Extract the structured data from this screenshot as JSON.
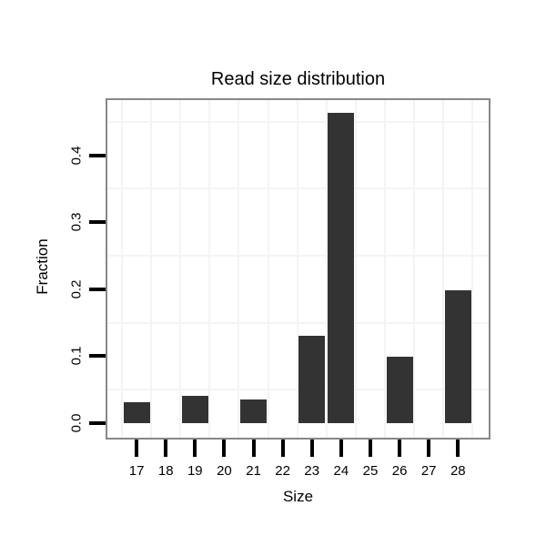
{
  "chart_data": {
    "type": "bar",
    "title": "Read size distribution",
    "xlabel": "Size",
    "ylabel": "Fraction",
    "categories": [
      "17",
      "18",
      "19",
      "20",
      "21",
      "22",
      "23",
      "24",
      "25",
      "26",
      "27",
      "28"
    ],
    "values": [
      0.031,
      0,
      0.041,
      0,
      0.035,
      0,
      0.131,
      0.463,
      0,
      0.099,
      0,
      0.198
    ],
    "ytick_labels": [
      "0.0",
      "0.1",
      "0.2",
      "0.3",
      "0.4"
    ],
    "ytick_values": [
      0.0,
      0.1,
      0.2,
      0.3,
      0.4
    ],
    "ylim": [
      0,
      0.487
    ],
    "legend": "none",
    "grid": "faint minor gridlines between categories and at 0.05 value intervals",
    "colors": {
      "bar": "#333333",
      "panel_border": "#888888",
      "gridline": "#f4f4f4",
      "tick": "#000000",
      "text": "#000000",
      "background": "#ffffff"
    }
  }
}
